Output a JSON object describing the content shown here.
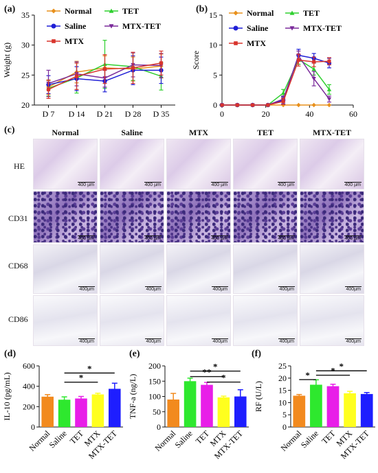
{
  "panels": {
    "a": "(a)",
    "b": "(b)",
    "c": "(c)",
    "d": "(d)",
    "e": "(e)",
    "f": "(f)"
  },
  "histology": {
    "columns": [
      "Normal",
      "Saline",
      "MTX",
      "TET",
      "MTX-TET"
    ],
    "rows": [
      {
        "label": "HE",
        "scale": "400 µm"
      },
      {
        "label": "CD31",
        "scale": "400 µm"
      },
      {
        "label": "CD68",
        "scale": "400µm"
      },
      {
        "label": "CD86",
        "scale": "400µm"
      }
    ]
  },
  "colors": {
    "Normal": "#e8901c",
    "Saline": "#1f1fd6",
    "MTX": "#d8342c",
    "TET": "#2fd02f",
    "MTX-TET": "#7a2a9a",
    "bar_Normal": "#f28a1e",
    "bar_Saline": "#2ee82e",
    "bar_TET": "#e81ee8",
    "bar_MTX": "#ffff1e",
    "bar_MTXTET": "#1e1eff"
  },
  "chart_data": [
    {
      "id": "a",
      "type": "line",
      "categories": [
        "D 7",
        "D 14",
        "D 21",
        "D 28",
        "D 35"
      ],
      "ylabel": "Weight (g)",
      "ylim": [
        20,
        35
      ],
      "yticks": [
        "20",
        "25",
        "30",
        "35"
      ],
      "legend": [
        "Normal",
        "TET",
        "Saline",
        "MTX-TET",
        "MTX"
      ],
      "series": [
        {
          "name": "Normal",
          "values": [
            23.0,
            25.5,
            26.2,
            26.0,
            26.5
          ],
          "err": [
            1.2,
            1.8,
            2.0,
            2.0,
            2.0
          ]
        },
        {
          "name": "TET",
          "values": [
            22.8,
            24.5,
            26.8,
            26.4,
            24.8
          ],
          "err": [
            1.3,
            2.5,
            4.0,
            2.3,
            2.3
          ]
        },
        {
          "name": "Saline",
          "values": [
            23.4,
            24.4,
            24.0,
            25.8,
            25.8
          ],
          "err": [
            1.5,
            2.0,
            1.8,
            2.4,
            2.2
          ]
        },
        {
          "name": "MTX-TET",
          "values": [
            23.6,
            25.2,
            24.5,
            26.7,
            26.6
          ],
          "err": [
            2.2,
            2.0,
            1.5,
            2.0,
            2.0
          ]
        },
        {
          "name": "MTX",
          "values": [
            22.6,
            24.8,
            26.0,
            26.2,
            27.0
          ],
          "err": [
            1.5,
            2.2,
            2.4,
            2.6,
            2.0
          ]
        }
      ]
    },
    {
      "id": "b",
      "type": "line",
      "xticks": [
        "0",
        "20",
        "40",
        "60"
      ],
      "xlim": [
        0,
        60
      ],
      "ylabel": "Score",
      "ylim": [
        0,
        15
      ],
      "yticks": [
        "0",
        "5",
        "10",
        "15"
      ],
      "legend": [
        "Normal",
        "TET",
        "Saline",
        "MTX-TET",
        "MTX"
      ],
      "series": [
        {
          "name": "Normal",
          "x": [
            0,
            7,
            14,
            21,
            28,
            35,
            42,
            49
          ],
          "values": [
            0,
            0,
            0,
            0,
            0,
            0,
            0,
            0
          ],
          "err": [
            0,
            0,
            0,
            0,
            0,
            0,
            0,
            0
          ]
        },
        {
          "name": "TET",
          "x": [
            0,
            7,
            14,
            21,
            28,
            35,
            42,
            49
          ],
          "values": [
            0,
            0,
            0,
            0,
            2.0,
            7.6,
            6.0,
            2.6
          ],
          "err": [
            0,
            0,
            0,
            0,
            0.6,
            0.8,
            1.0,
            0.8
          ]
        },
        {
          "name": "Saline",
          "x": [
            0,
            7,
            14,
            21,
            28,
            35,
            42,
            49
          ],
          "values": [
            0,
            0,
            0,
            0,
            0.8,
            8.3,
            7.8,
            7.0
          ],
          "err": [
            0,
            0,
            0,
            0,
            0.6,
            1.0,
            0.8,
            0.8
          ]
        },
        {
          "name": "MTX-TET",
          "x": [
            0,
            7,
            14,
            21,
            28,
            35,
            42,
            49
          ],
          "values": [
            0,
            0,
            0,
            0,
            1.0,
            8.2,
            4.4,
            1.0
          ],
          "err": [
            0,
            0,
            0,
            0,
            0.5,
            0.8,
            1.2,
            0.5
          ]
        },
        {
          "name": "MTX",
          "x": [
            0,
            7,
            14,
            21,
            28,
            35,
            42,
            49
          ],
          "values": [
            0,
            0,
            0,
            0,
            0.6,
            7.5,
            7.2,
            7.3
          ],
          "err": [
            0,
            0,
            0,
            0,
            0.5,
            1.0,
            0.8,
            0.6
          ]
        }
      ]
    },
    {
      "id": "d",
      "type": "bar",
      "categories": [
        "Normal",
        "Saline",
        "TET",
        "MTX",
        "MTX-TET"
      ],
      "values": [
        298,
        268,
        280,
        320,
        375
      ],
      "err": [
        20,
        28,
        20,
        12,
        55
      ],
      "ylabel": "IL-10 (pg/mL)",
      "ylim": [
        0,
        600
      ],
      "yticks": [
        "0",
        "200",
        "400",
        "600"
      ],
      "sig": [
        {
          "from": 1,
          "to": 4,
          "label": "*",
          "level": 530
        },
        {
          "from": 1,
          "to": 3,
          "label": "*",
          "level": 440
        }
      ]
    },
    {
      "id": "e",
      "type": "bar",
      "categories": [
        "Normal",
        "Saline",
        "TET",
        "MTX",
        "MTX-TET"
      ],
      "values": [
        90,
        150,
        138,
        97,
        100
      ],
      "err": [
        20,
        10,
        8,
        4,
        22
      ],
      "ylabel": "TNF-a (ng/L)",
      "ylim": [
        0,
        200
      ],
      "yticks": [
        "0",
        "50",
        "100",
        "150",
        "200"
      ],
      "sig": [
        {
          "from": 1,
          "to": 4,
          "label": "*",
          "level": 183
        },
        {
          "from": 1,
          "to": 3,
          "label": "**",
          "level": 165
        },
        {
          "from": 2,
          "to": 4,
          "label": "*",
          "level": 147
        }
      ]
    },
    {
      "id": "f",
      "type": "bar",
      "categories": [
        "Normal",
        "Saline",
        "TET",
        "MTX",
        "MTX-TET"
      ],
      "values": [
        12.8,
        17.3,
        16.7,
        13.8,
        13.5
      ],
      "err": [
        0.5,
        2.0,
        0.8,
        0.8,
        0.6
      ],
      "ylabel": "RF (U/L)",
      "ylim": [
        0,
        25
      ],
      "yticks": [
        "0",
        "5",
        "10",
        "15",
        "20",
        "25"
      ],
      "sig": [
        {
          "from": 1,
          "to": 4,
          "label": "*",
          "level": 23
        },
        {
          "from": 1,
          "to": 3,
          "label": "*",
          "level": 21.2
        },
        {
          "from": 0,
          "to": 1,
          "label": "*",
          "level": 19.4
        }
      ]
    }
  ]
}
